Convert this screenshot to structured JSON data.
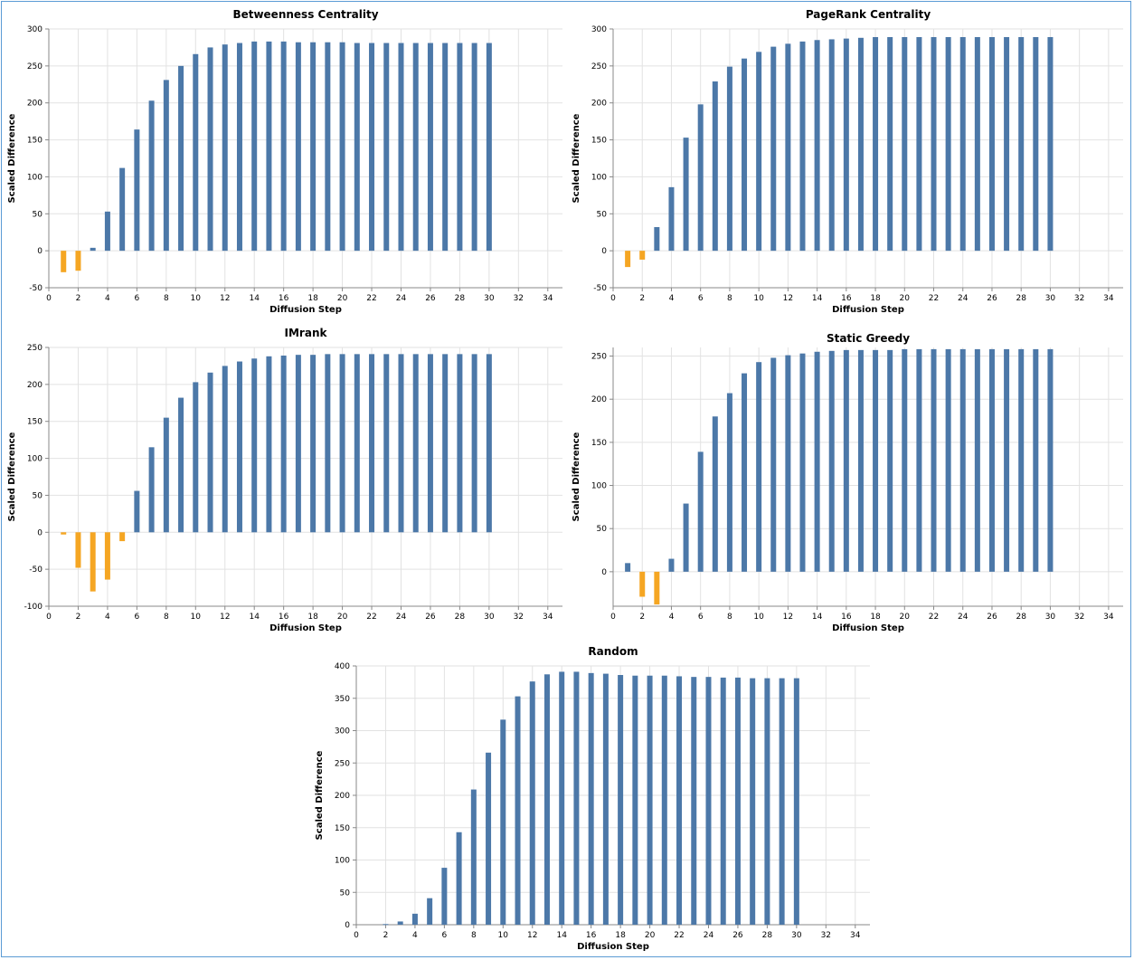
{
  "colors": {
    "positive": "#4c78a8",
    "negative": "#f5a623"
  },
  "chart_data": [
    {
      "type": "bar",
      "title": "Betweenness Centrality",
      "xlabel": "Diffusion Step",
      "ylabel": "Scaled Difference",
      "xlim": [
        0,
        35
      ],
      "ylim": [
        -50,
        300
      ],
      "xticks": [
        0,
        2,
        4,
        6,
        8,
        10,
        12,
        14,
        16,
        18,
        20,
        22,
        24,
        26,
        28,
        30,
        32,
        34
      ],
      "yticks": [
        -50,
        0,
        50,
        100,
        150,
        200,
        250,
        300
      ],
      "grid": true,
      "x": [
        1,
        2,
        3,
        4,
        5,
        6,
        7,
        8,
        9,
        10,
        11,
        12,
        13,
        14,
        15,
        16,
        17,
        18,
        19,
        20,
        21,
        22,
        23,
        24,
        25,
        26,
        27,
        28,
        29,
        30
      ],
      "values": [
        -29,
        -27,
        4,
        53,
        112,
        164,
        203,
        231,
        250,
        266,
        275,
        279,
        281,
        283,
        283,
        283,
        282,
        282,
        282,
        282,
        281,
        281,
        281,
        281,
        281,
        281,
        281,
        281,
        281,
        281
      ]
    },
    {
      "type": "bar",
      "title": "PageRank Centrality",
      "xlabel": "Diffusion Step",
      "ylabel": "Scaled Difference",
      "xlim": [
        0,
        35
      ],
      "ylim": [
        -50,
        300
      ],
      "xticks": [
        0,
        2,
        4,
        6,
        8,
        10,
        12,
        14,
        16,
        18,
        20,
        22,
        24,
        26,
        28,
        30,
        32,
        34
      ],
      "yticks": [
        -50,
        0,
        50,
        100,
        150,
        200,
        250,
        300
      ],
      "grid": true,
      "x": [
        1,
        2,
        3,
        4,
        5,
        6,
        7,
        8,
        9,
        10,
        11,
        12,
        13,
        14,
        15,
        16,
        17,
        18,
        19,
        20,
        21,
        22,
        23,
        24,
        25,
        26,
        27,
        28,
        29,
        30
      ],
      "values": [
        -22,
        -12,
        32,
        86,
        153,
        198,
        229,
        249,
        260,
        269,
        276,
        280,
        283,
        285,
        286,
        287,
        288,
        289,
        289,
        289,
        289,
        289,
        289,
        289,
        289,
        289,
        289,
        289,
        289,
        289
      ]
    },
    {
      "type": "bar",
      "title": "IMrank",
      "xlabel": "Diffusion Step",
      "ylabel": "Scaled Difference",
      "xlim": [
        0,
        35
      ],
      "ylim": [
        -100,
        250
      ],
      "xticks": [
        0,
        2,
        4,
        6,
        8,
        10,
        12,
        14,
        16,
        18,
        20,
        22,
        24,
        26,
        28,
        30,
        32,
        34
      ],
      "yticks": [
        -100,
        -50,
        0,
        50,
        100,
        150,
        200,
        250
      ],
      "grid": true,
      "x": [
        1,
        2,
        3,
        4,
        5,
        6,
        7,
        8,
        9,
        10,
        11,
        12,
        13,
        14,
        15,
        16,
        17,
        18,
        19,
        20,
        21,
        22,
        23,
        24,
        25,
        26,
        27,
        28,
        29,
        30
      ],
      "values": [
        -3,
        -48,
        -80,
        -64,
        -12,
        56,
        115,
        155,
        182,
        203,
        216,
        225,
        231,
        235,
        238,
        239,
        240,
        240,
        241,
        241,
        241,
        241,
        241,
        241,
        241,
        241,
        241,
        241,
        241,
        241
      ]
    },
    {
      "type": "bar",
      "title": "Static Greedy",
      "xlabel": "Diffusion Step",
      "ylabel": "Scaled Difference",
      "xlim": [
        0,
        35
      ],
      "ylim": [
        -40,
        260
      ],
      "xticks": [
        0,
        2,
        4,
        6,
        8,
        10,
        12,
        14,
        16,
        18,
        20,
        22,
        24,
        26,
        28,
        30,
        32,
        34
      ],
      "yticks": [
        0,
        50,
        100,
        150,
        200,
        250
      ],
      "grid": true,
      "x": [
        1,
        2,
        3,
        4,
        5,
        6,
        7,
        8,
        9,
        10,
        11,
        12,
        13,
        14,
        15,
        16,
        17,
        18,
        19,
        20,
        21,
        22,
        23,
        24,
        25,
        26,
        27,
        28,
        29,
        30
      ],
      "values": [
        10,
        -29,
        -38,
        15,
        79,
        139,
        180,
        207,
        230,
        243,
        248,
        251,
        253,
        255,
        256,
        257,
        257,
        257,
        257,
        258,
        258,
        258,
        258,
        258,
        258,
        258,
        258,
        258,
        258,
        258
      ]
    },
    {
      "type": "bar",
      "title": "Random",
      "xlabel": "Diffusion Step",
      "ylabel": "Scaled Difference",
      "xlim": [
        0,
        35
      ],
      "ylim": [
        0,
        400
      ],
      "xticks": [
        0,
        2,
        4,
        6,
        8,
        10,
        12,
        14,
        16,
        18,
        20,
        22,
        24,
        26,
        28,
        30,
        32,
        34
      ],
      "yticks": [
        0,
        50,
        100,
        150,
        200,
        250,
        300,
        350,
        400
      ],
      "grid": true,
      "x": [
        1,
        2,
        3,
        4,
        5,
        6,
        7,
        8,
        9,
        10,
        11,
        12,
        13,
        14,
        15,
        16,
        17,
        18,
        19,
        20,
        21,
        22,
        23,
        24,
        25,
        26,
        27,
        28,
        29,
        30
      ],
      "values": [
        0,
        1,
        5,
        17,
        41,
        88,
        143,
        209,
        266,
        317,
        353,
        376,
        387,
        391,
        391,
        389,
        388,
        386,
        385,
        385,
        385,
        384,
        383,
        383,
        382,
        382,
        381,
        381,
        381,
        381
      ]
    }
  ]
}
